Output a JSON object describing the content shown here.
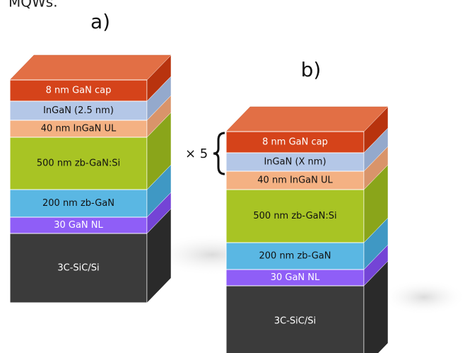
{
  "header": {
    "caption": "MQWs."
  },
  "panels": [
    {
      "label": "a)",
      "layers": [
        "8 nm GaN cap",
        "InGaN (2.5 nm)",
        "40 nm InGaN UL",
        "500 nm zb-GaN:Si",
        "200 nm zb-GaN",
        "30 GaN NL",
        "3C-SiC/Si"
      ]
    },
    {
      "label": "b)",
      "layers": [
        "8 nm GaN cap",
        "InGaN (X nm)",
        "40 nm InGaN UL",
        "500 nm zb-GaN:Si",
        "200 nm zb-GaN",
        "30 GaN NL",
        "3C-SiC/Si"
      ],
      "repeat": "× 5"
    }
  ]
}
